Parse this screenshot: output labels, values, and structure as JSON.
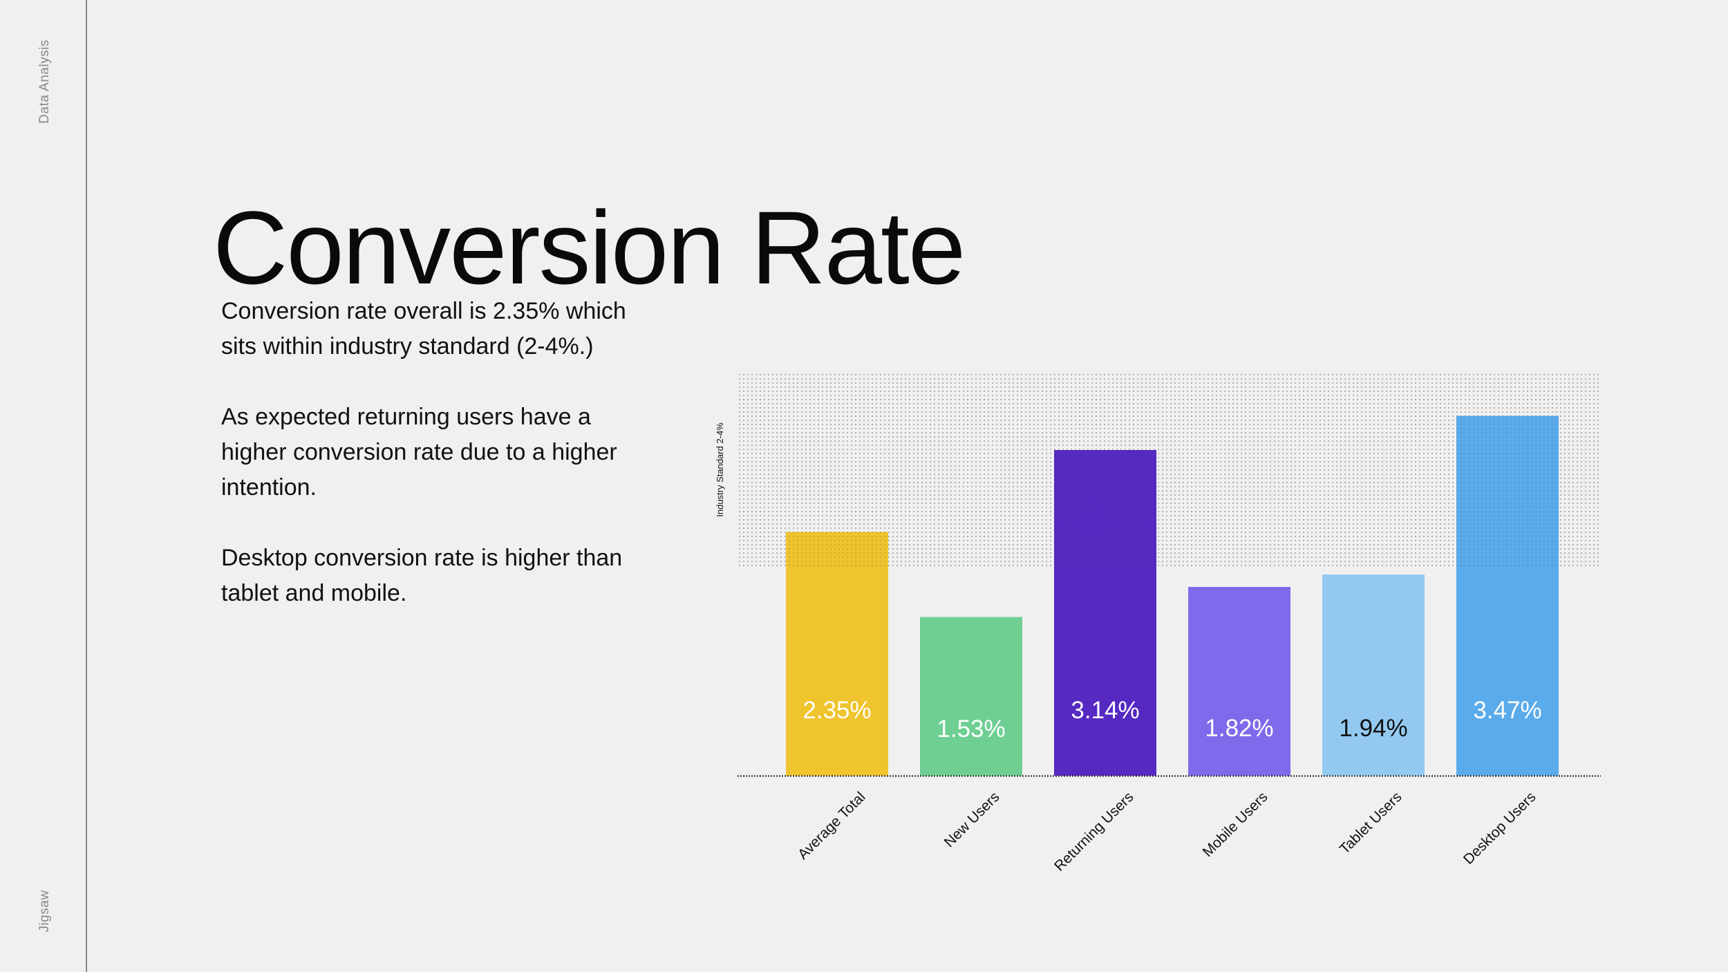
{
  "sidebar": {
    "top_label": "Data Analysis",
    "bottom_label": "Jigsaw"
  },
  "slide": {
    "title": "Conversion Rate",
    "paragraphs": [
      "Conversion rate overall is 2.35% which sits within industry standard (2-4%.)",
      "As expected returning users have a higher conversion rate due to a higher intention.",
      "Desktop conversion rate is higher than tablet and mobile."
    ]
  },
  "chart_data": {
    "type": "bar",
    "categories": [
      "Average Total",
      "New Users",
      "Returning Users",
      "Mobile Users",
      "Tablet Users",
      "Desktop Users"
    ],
    "values": [
      2.35,
      1.53,
      3.14,
      1.82,
      1.94,
      3.47
    ],
    "data_labels": [
      "2.35%",
      "1.53%",
      "3.14%",
      "1.82%",
      "1.94%",
      "3.47%"
    ],
    "colors": [
      "#f0c42e",
      "#6fcf93",
      "#5529c2",
      "#7f6aeb",
      "#93c9f0",
      "#5aabeb"
    ],
    "label_colors": [
      "#ffffff",
      "#ffffff",
      "#ffffff",
      "#ffffff",
      "#111111",
      "#ffffff"
    ],
    "band": {
      "label": "Industry Standard 2-4%",
      "from": 2,
      "to": 4
    },
    "ylim": [
      0,
      4
    ],
    "title": "",
    "xlabel": "",
    "ylabel": ""
  }
}
